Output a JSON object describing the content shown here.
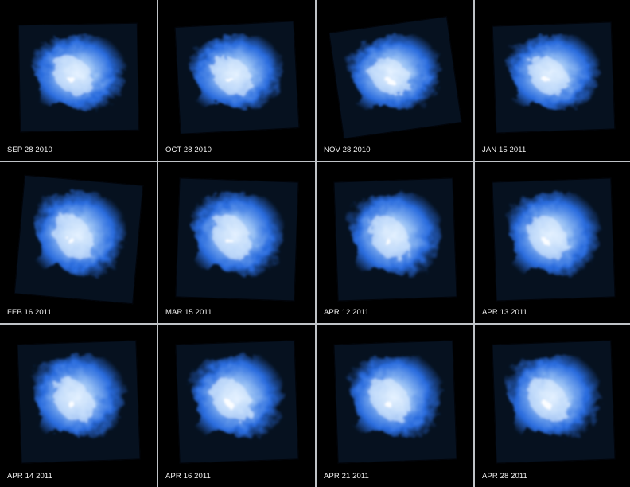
{
  "panels": [
    {
      "date": "SEP 28 2010"
    },
    {
      "date": "OCT 28 2010"
    },
    {
      "date": "NOV 28 2010"
    },
    {
      "date": "JAN 15 2011"
    },
    {
      "date": "FEB 16 2011"
    },
    {
      "date": "MAR 15 2011"
    },
    {
      "date": "APR 12 2011"
    },
    {
      "date": "APR 13 2011"
    },
    {
      "date": "APR 14 2011"
    },
    {
      "date": "APR 16 2011"
    },
    {
      "date": "APR 21 2011"
    },
    {
      "date": "APR 28 2011"
    }
  ],
  "colors": {
    "background": "#000000",
    "divider": "#bfc3c7",
    "nebula_core": "#e6f2ff",
    "nebula_glow": "#2f7bff",
    "label_text": "#f2f2f2"
  }
}
